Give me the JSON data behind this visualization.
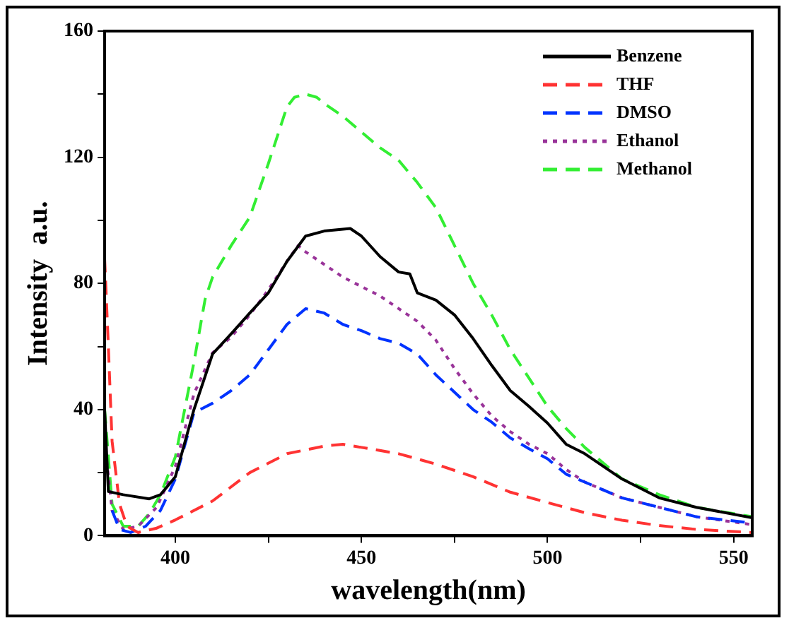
{
  "chart_data": {
    "type": "line",
    "xlabel": "wavelength(nm)",
    "ylabel": "Intensity  a.u.",
    "xlim": [
      381,
      555
    ],
    "xticks": [
      400,
      {
        "value": 425,
        "label": null
      },
      450,
      {
        "value": 475,
        "label": null
      },
      500,
      {
        "value": 525,
        "label": null
      },
      550
    ],
    "ylim": [
      0,
      160
    ],
    "yticks": [
      0,
      {
        "value": 20,
        "label": null
      },
      40,
      {
        "value": 60,
        "label": null
      },
      80,
      {
        "value": 100,
        "label": null
      },
      120,
      {
        "value": 140,
        "label": null
      },
      160
    ],
    "grid": false,
    "legend": "top right",
    "marker": "none",
    "series": [
      {
        "name": "Benzene",
        "color": "#000000",
        "line_style": "solid",
        "x": [
          381,
          382,
          386,
          393,
          396,
          400,
          405,
          410,
          415,
          420,
          425,
          430,
          435,
          440,
          447,
          450,
          455,
          460,
          463,
          465,
          470,
          475,
          480,
          485,
          490,
          495,
          500,
          505,
          510,
          520,
          530,
          540,
          555
        ],
        "values": [
          40,
          14,
          13,
          11.7,
          13,
          18.7,
          40,
          57.6,
          64,
          70.6,
          77,
          87,
          95,
          96.6,
          97.4,
          95,
          88.5,
          83.6,
          83,
          77,
          74.7,
          70,
          62.5,
          54,
          46,
          41,
          35.7,
          29,
          26,
          18,
          12,
          9,
          5.7
        ]
      },
      {
        "name": "THF",
        "color": "#ff3333",
        "line_style": "dashed",
        "x": [
          381,
          382,
          383,
          385,
          387,
          390,
          395,
          400,
          410,
          420,
          430,
          440,
          445,
          450,
          460,
          470,
          480,
          490,
          500,
          510,
          520,
          530,
          540,
          555
        ],
        "values": [
          88,
          60,
          30,
          10,
          3,
          1,
          2.4,
          5,
          11,
          20,
          26,
          28.4,
          29,
          28,
          26,
          22.7,
          18.7,
          13.8,
          10.5,
          7.3,
          4.9,
          3.2,
          2,
          1
        ]
      },
      {
        "name": "DMSO",
        "color": "#0033ff",
        "line_style": "dashed",
        "x": [
          383,
          385,
          388,
          392,
          396,
          400,
          405,
          410,
          415,
          420,
          425,
          430,
          435,
          440,
          445,
          450,
          455,
          460,
          465,
          470,
          475,
          480,
          485,
          490,
          495,
          500,
          505,
          510,
          520,
          530,
          540,
          555
        ],
        "values": [
          8,
          2,
          1,
          3,
          8,
          18,
          39,
          42,
          46,
          51,
          59,
          67,
          72,
          70.6,
          67,
          65,
          62.5,
          61,
          57.6,
          51,
          45.5,
          40,
          36,
          31,
          27.6,
          24.4,
          19.5,
          17,
          12,
          9,
          6,
          4
        ]
      },
      {
        "name": "Ethanol",
        "color": "#993399",
        "line_style": "dotted",
        "x": [
          381,
          383,
          386,
          390,
          395,
          400,
          405,
          410,
          415,
          420,
          425,
          430,
          433,
          435,
          440,
          445,
          450,
          455,
          460,
          465,
          470,
          475,
          480,
          485,
          490,
          495,
          500,
          505,
          510,
          520,
          530,
          540,
          555
        ],
        "values": [
          30,
          8,
          2,
          3,
          9,
          22,
          45,
          58,
          63,
          70,
          78,
          87,
          92,
          90,
          86,
          82,
          79,
          76,
          72,
          68,
          62,
          53,
          45,
          38,
          33,
          29,
          26,
          21,
          17,
          12,
          9,
          6,
          3.5
        ]
      },
      {
        "name": "Methanol",
        "color": "#33ee33",
        "line_style": "dashed",
        "x": [
          381,
          383,
          386,
          390,
          393,
          396,
          400,
          405,
          408,
          410,
          415,
          420,
          425,
          430,
          432,
          435,
          438,
          440,
          445,
          450,
          455,
          460,
          465,
          470,
          475,
          480,
          485,
          490,
          495,
          500,
          505,
          510,
          520,
          530,
          540,
          555
        ],
        "values": [
          40,
          10,
          3,
          3,
          7,
          13,
          25,
          55,
          75,
          82,
          92,
          101,
          118,
          136,
          139,
          140,
          139,
          137,
          133,
          128,
          123,
          119,
          112,
          104,
          92,
          80,
          70,
          59,
          50,
          41,
          34,
          28,
          18,
          13,
          9,
          6
        ]
      }
    ]
  }
}
